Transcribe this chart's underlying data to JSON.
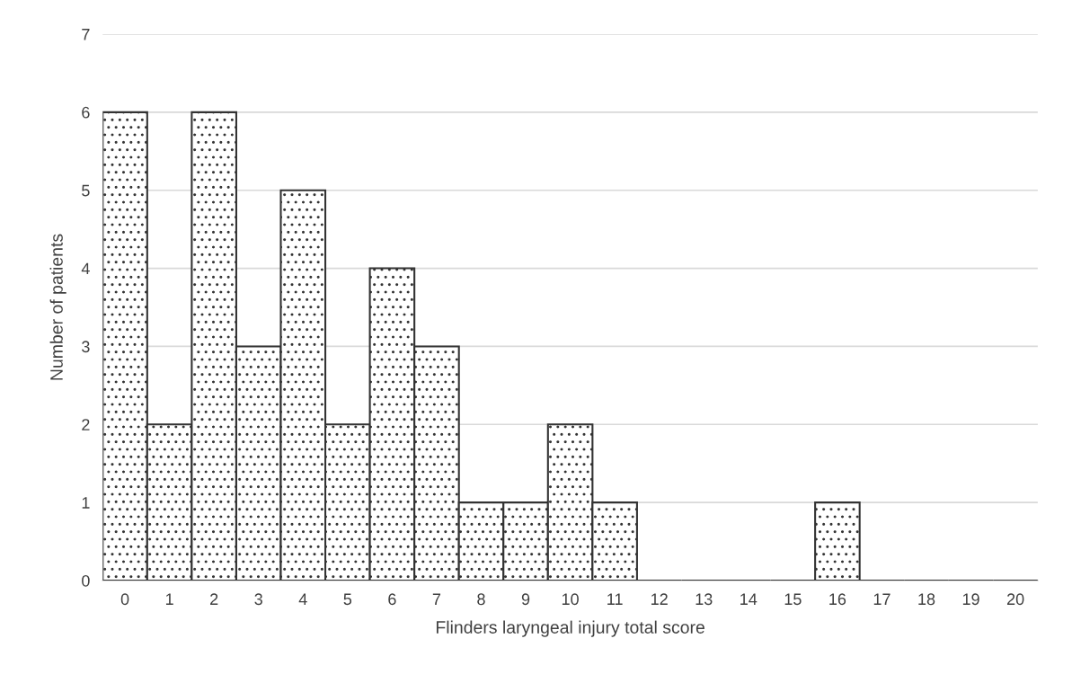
{
  "chart_data": {
    "type": "bar",
    "xlabel": "Flinders laryngeal injury total score",
    "ylabel": "Number of patients",
    "categories": [
      "0",
      "1",
      "2",
      "3",
      "4",
      "5",
      "6",
      "7",
      "8",
      "9",
      "10",
      "11",
      "12",
      "13",
      "14",
      "15",
      "16",
      "17",
      "18",
      "19",
      "20"
    ],
    "values": [
      6,
      2,
      6,
      3,
      5,
      2,
      4,
      3,
      1,
      1,
      2,
      1,
      0,
      0,
      0,
      0,
      1,
      0,
      0,
      0,
      0
    ],
    "color": "#333333",
    "ylim": [
      0,
      7
    ],
    "yticks": [
      0,
      1,
      2,
      3,
      4,
      5,
      6,
      7
    ],
    "grid": "y",
    "legend": false
  }
}
